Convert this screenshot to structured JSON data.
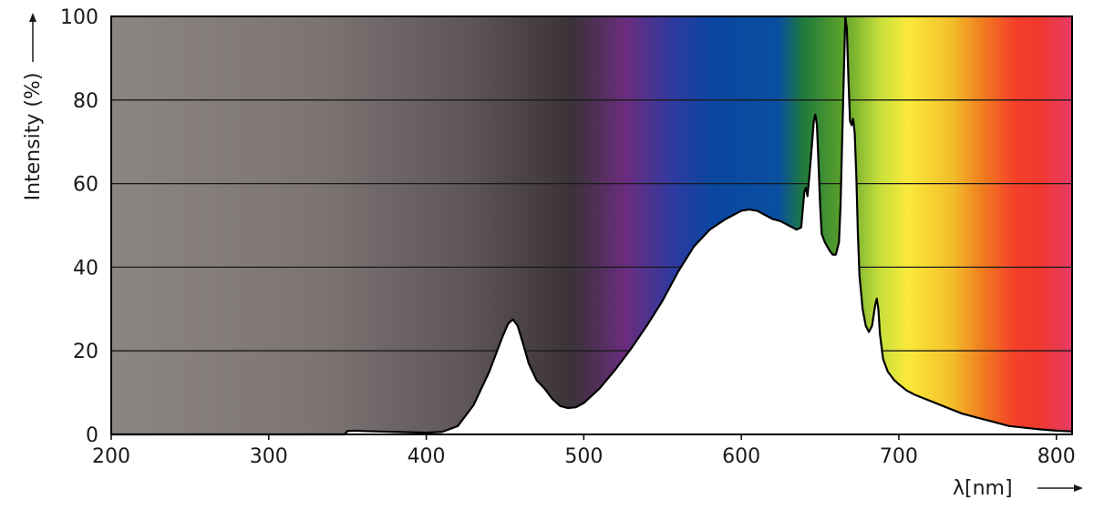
{
  "chart_data": {
    "type": "area",
    "title": "",
    "xlabel": "λ[nm]",
    "ylabel": "Intensity (%)",
    "xlim": [
      200,
      810
    ],
    "ylim": [
      0,
      100
    ],
    "x_ticks": [
      200,
      300,
      400,
      500,
      600,
      700,
      800
    ],
    "y_ticks": [
      0,
      20,
      40,
      60,
      80,
      100
    ],
    "grid": "horizontal",
    "background": "visible spectrum color band (UV grey → violet → blue → green → yellow → orange → red)",
    "series": [
      {
        "fill": "#ffffff",
        "stroke": "#000000",
        "points": [
          [
            200,
            0
          ],
          [
            348,
            0
          ],
          [
            350,
            0.8
          ],
          [
            355,
            0.9
          ],
          [
            360,
            0.8
          ],
          [
            380,
            0.6
          ],
          [
            400,
            0.4
          ],
          [
            410,
            0.6
          ],
          [
            420,
            2
          ],
          [
            430,
            7
          ],
          [
            440,
            15
          ],
          [
            448,
            23
          ],
          [
            452,
            26.5
          ],
          [
            455,
            27.5
          ],
          [
            458,
            26
          ],
          [
            462,
            21
          ],
          [
            465,
            17
          ],
          [
            470,
            13
          ],
          [
            475,
            11
          ],
          [
            480,
            8.5
          ],
          [
            485,
            6.8
          ],
          [
            490,
            6.3
          ],
          [
            495,
            6.5
          ],
          [
            500,
            7.5
          ],
          [
            510,
            11
          ],
          [
            520,
            15.5
          ],
          [
            530,
            20.5
          ],
          [
            540,
            26
          ],
          [
            550,
            32
          ],
          [
            560,
            39
          ],
          [
            570,
            45
          ],
          [
            580,
            49
          ],
          [
            590,
            51.5
          ],
          [
            600,
            53.5
          ],
          [
            605,
            53.8
          ],
          [
            610,
            53.5
          ],
          [
            615,
            52.5
          ],
          [
            620,
            51.5
          ],
          [
            625,
            51
          ],
          [
            630,
            50
          ],
          [
            635,
            49
          ],
          [
            638,
            49.5
          ],
          [
            640,
            58
          ],
          [
            641,
            59
          ],
          [
            642,
            57
          ],
          [
            643,
            61
          ],
          [
            645,
            70
          ],
          [
            646,
            75
          ],
          [
            647,
            76.5
          ],
          [
            648,
            74
          ],
          [
            649,
            65
          ],
          [
            650,
            55
          ],
          [
            651,
            48
          ],
          [
            653,
            46
          ],
          [
            656,
            44
          ],
          [
            658,
            43
          ],
          [
            660,
            43
          ],
          [
            662,
            46
          ],
          [
            663,
            55
          ],
          [
            664,
            70
          ],
          [
            665,
            85
          ],
          [
            666,
            100
          ],
          [
            667,
            97
          ],
          [
            668,
            85
          ],
          [
            669,
            75
          ],
          [
            670,
            74
          ],
          [
            671,
            75.5
          ],
          [
            672,
            72
          ],
          [
            673,
            62
          ],
          [
            674,
            48
          ],
          [
            675,
            38
          ],
          [
            677,
            30
          ],
          [
            679,
            26
          ],
          [
            681,
            24.5
          ],
          [
            683,
            26
          ],
          [
            685,
            31
          ],
          [
            686,
            32.5
          ],
          [
            687,
            30
          ],
          [
            688,
            24
          ],
          [
            690,
            18
          ],
          [
            693,
            15
          ],
          [
            697,
            13
          ],
          [
            700,
            12
          ],
          [
            705,
            10.5
          ],
          [
            710,
            9.5
          ],
          [
            720,
            8
          ],
          [
            730,
            6.5
          ],
          [
            740,
            5
          ],
          [
            750,
            4
          ],
          [
            760,
            3
          ],
          [
            770,
            2
          ],
          [
            780,
            1.6
          ],
          [
            790,
            1.2
          ],
          [
            800,
            0.9
          ],
          [
            810,
            0.7
          ]
        ]
      }
    ]
  }
}
